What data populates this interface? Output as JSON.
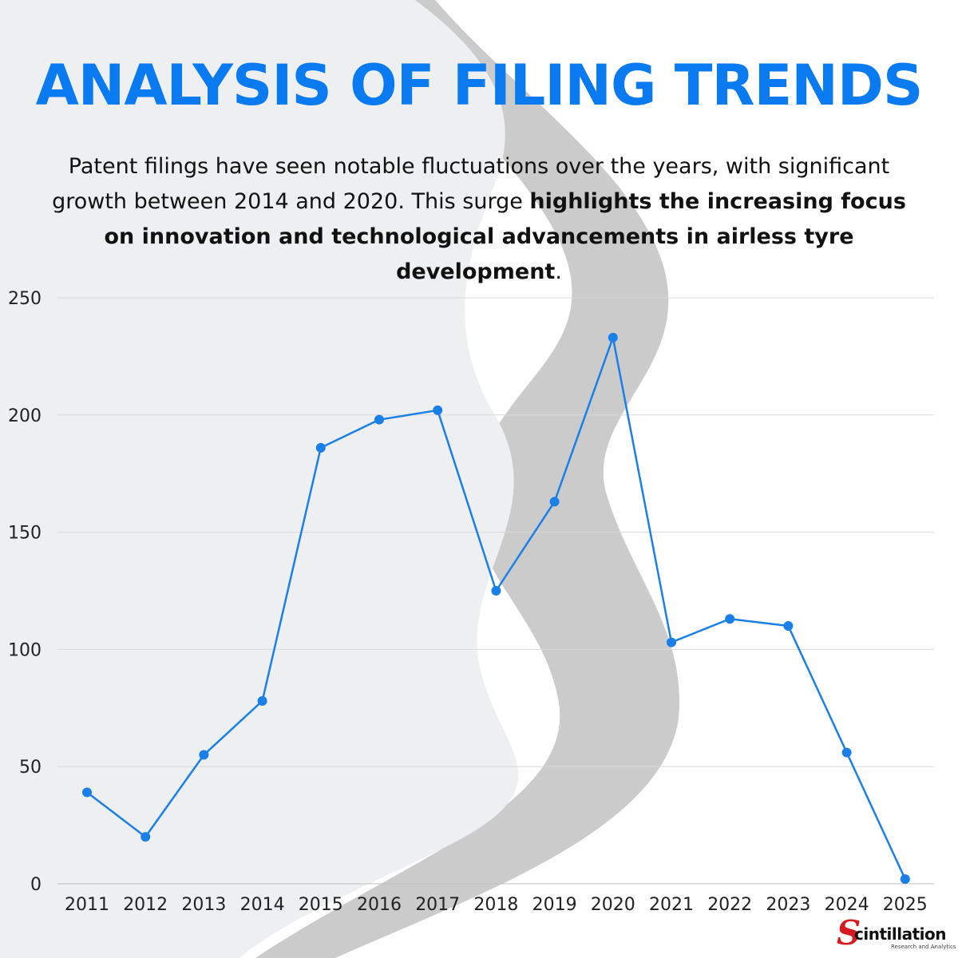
{
  "header": {
    "title": "ANALYSIS OF FILING TRENDS",
    "intro_plain": "Patent filings have seen notable fluctuations over the years, with significant growth between 2014 and 2020. This surge ",
    "intro_bold": "highlights the increasing focus on innovation and technological advancements in airless tyre development",
    "intro_end": "."
  },
  "colors": {
    "accent": "#0a7af0",
    "line": "#1a7fe8",
    "grid": "#d9d9d9",
    "background_light": "#eeeff0",
    "background_shadow": "#cbcbcb",
    "logo_red": "#d71920"
  },
  "chart_data": {
    "type": "line",
    "title": "",
    "xlabel": "",
    "ylabel": "",
    "categories": [
      "2011",
      "2012",
      "2013",
      "2014",
      "2015",
      "2016",
      "2017",
      "2018",
      "2019",
      "2020",
      "2021",
      "2022",
      "2023",
      "2024",
      "2025"
    ],
    "series": [
      {
        "values": [
          39,
          20,
          55,
          78,
          186,
          198,
          202,
          125,
          163,
          233,
          103,
          113,
          110,
          56,
          2
        ]
      }
    ],
    "ylim": [
      0,
      250
    ],
    "yticks": [
      0,
      50,
      100,
      150,
      200,
      250
    ],
    "grid": true,
    "legend": "none"
  },
  "branding": {
    "logo_initial": "S",
    "logo_word": "cintillation",
    "logo_tagline": "Research and Analytics"
  }
}
